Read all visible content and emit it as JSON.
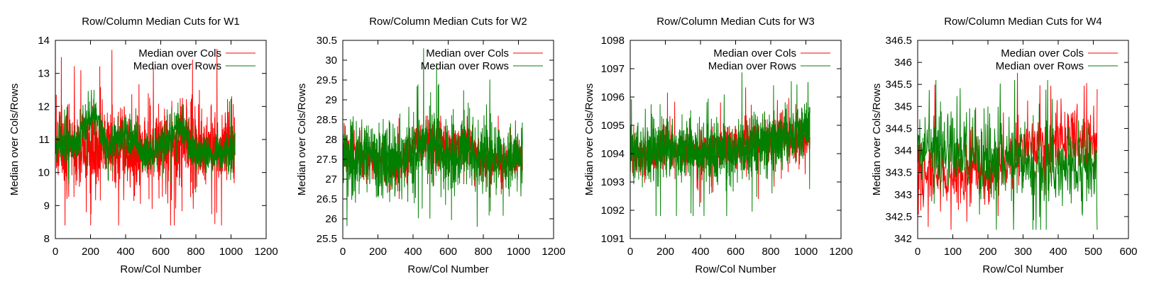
{
  "chart_data": [
    {
      "type": "line",
      "title": "Row/Column Median Cuts for W1",
      "xlabel": "Row/Col Number",
      "ylabel": "Median over Cols/Rows",
      "xlim": [
        0,
        1200
      ],
      "ylim": [
        8,
        14
      ],
      "xticks": [
        0,
        200,
        400,
        600,
        800,
        1000,
        1200
      ],
      "yticks": [
        8,
        9,
        10,
        11,
        12,
        13,
        14
      ],
      "ytick_labels": [
        "8",
        "9",
        "10",
        "11",
        "12",
        "13",
        "14"
      ],
      "n_points": 1024,
      "legend_position": "top-right",
      "series": [
        {
          "name": "Median over Cols",
          "color": "#ff0000",
          "x": [
            0,
            100,
            200,
            300,
            400,
            500,
            600,
            700,
            800,
            900,
            1000,
            1024
          ],
          "y": [
            10.9,
            10.8,
            10.9,
            10.8,
            10.7,
            10.6,
            10.8,
            10.9,
            10.8,
            10.7,
            10.8,
            10.8
          ],
          "spread": 0.6,
          "range": [
            8.4,
            13.9
          ]
        },
        {
          "name": "Median over Rows",
          "color": "#008000",
          "x": [
            0,
            100,
            200,
            300,
            400,
            500,
            600,
            700,
            800,
            900,
            1000,
            1024
          ],
          "y": [
            10.9,
            10.8,
            11.8,
            10.8,
            11.2,
            10.6,
            10.7,
            11.4,
            10.6,
            10.5,
            10.6,
            10.8
          ],
          "spread": 0.3,
          "range": [
            9.4,
            12.5
          ]
        }
      ]
    },
    {
      "type": "line",
      "title": "Row/Column Median Cuts for W2",
      "xlabel": "Row/Col Number",
      "ylabel": "Median over Cols/Rows",
      "xlim": [
        0,
        1200
      ],
      "ylim": [
        25.5,
        30.5
      ],
      "xticks": [
        0,
        200,
        400,
        600,
        800,
        1000,
        1200
      ],
      "yticks": [
        25.5,
        26,
        26.5,
        27,
        27.5,
        28,
        28.5,
        29,
        29.5,
        30,
        30.5
      ],
      "ytick_labels": [
        "25.5",
        "26",
        "26.5",
        "27",
        "27.5",
        "28",
        "28.5",
        "29",
        "29.5",
        "30",
        "30.5"
      ],
      "n_points": 1024,
      "legend_position": "top-right",
      "series": [
        {
          "name": "Median over Cols",
          "color": "#ff0000",
          "x": [
            0,
            100,
            200,
            300,
            400,
            500,
            600,
            700,
            800,
            900,
            1000,
            1024
          ],
          "y": [
            27.8,
            27.6,
            27.4,
            27.2,
            27.8,
            28.0,
            27.7,
            27.9,
            27.5,
            27.4,
            27.5,
            27.6
          ],
          "spread": 0.25,
          "range": [
            26.5,
            28.6
          ]
        },
        {
          "name": "Median over Rows",
          "color": "#008000",
          "x": [
            0,
            100,
            200,
            300,
            400,
            500,
            600,
            700,
            800,
            900,
            1000,
            1024
          ],
          "y": [
            27.6,
            27.6,
            27.6,
            27.5,
            27.7,
            27.7,
            27.6,
            27.6,
            27.6,
            27.5,
            27.5,
            27.5
          ],
          "spread": 0.45,
          "range": [
            25.8,
            30.3
          ]
        }
      ]
    },
    {
      "type": "line",
      "title": "Row/Column Median Cuts for W3",
      "xlabel": "Row/Col Number",
      "ylabel": "Median over Cols/Rows",
      "xlim": [
        0,
        1200
      ],
      "ylim": [
        1091,
        1098
      ],
      "xticks": [
        0,
        200,
        400,
        600,
        800,
        1000,
        1200
      ],
      "yticks": [
        1091,
        1092,
        1093,
        1094,
        1095,
        1096,
        1097,
        1098
      ],
      "ytick_labels": [
        "1091",
        "1092",
        "1093",
        "1094",
        "1095",
        "1096",
        "1097",
        "1098"
      ],
      "n_points": 1024,
      "legend_position": "top-right",
      "series": [
        {
          "name": "Median over Cols",
          "color": "#ff0000",
          "x": [
            0,
            100,
            200,
            300,
            400,
            500,
            600,
            700,
            800,
            900,
            1000,
            1024
          ],
          "y": [
            1094.0,
            1094.0,
            1094.1,
            1094.1,
            1094.1,
            1094.2,
            1094.3,
            1094.4,
            1094.5,
            1094.5,
            1094.5,
            1094.4
          ],
          "spread": 0.35,
          "range": [
            1092.2,
            1096.8
          ]
        },
        {
          "name": "Median over Rows",
          "color": "#008000",
          "x": [
            0,
            100,
            200,
            300,
            400,
            500,
            600,
            700,
            800,
            900,
            1000,
            1024
          ],
          "y": [
            1094.0,
            1094.1,
            1094.2,
            1094.1,
            1094.0,
            1094.0,
            1094.1,
            1094.3,
            1094.4,
            1094.5,
            1095.0,
            1094.9
          ],
          "spread": 0.55,
          "range": [
            1091.8,
            1097.4
          ]
        }
      ]
    },
    {
      "type": "line",
      "title": "Row/Column Median Cuts for W4",
      "xlabel": "Row/Col Number",
      "ylabel": "Median over Cols/Rows",
      "xlim": [
        0,
        600
      ],
      "ylim": [
        342,
        346.5
      ],
      "xticks": [
        0,
        100,
        200,
        300,
        400,
        500,
        600
      ],
      "yticks": [
        342,
        342.5,
        343,
        343.5,
        344,
        344.5,
        345,
        345.5,
        346,
        346.5
      ],
      "ytick_labels": [
        "342",
        "342.5",
        "343",
        "343.5",
        "344",
        "344.5",
        "345",
        "345.5",
        "346",
        "346.5"
      ],
      "n_points": 512,
      "legend_position": "top-right",
      "series": [
        {
          "name": "Median over Cols",
          "color": "#ff0000",
          "x": [
            0,
            50,
            100,
            150,
            200,
            250,
            300,
            350,
            400,
            450,
            500,
            512
          ],
          "y": [
            343.4,
            343.5,
            343.4,
            343.5,
            343.4,
            343.7,
            344.1,
            344.2,
            344.3,
            344.3,
            344.2,
            344.1
          ],
          "spread": 0.35,
          "range": [
            342.2,
            346.0
          ]
        },
        {
          "name": "Median over Rows",
          "color": "#008000",
          "x": [
            0,
            50,
            100,
            150,
            200,
            250,
            300,
            350,
            400,
            450,
            500,
            512
          ],
          "y": [
            344.0,
            344.1,
            344.0,
            343.9,
            343.8,
            343.8,
            343.7,
            343.6,
            343.6,
            343.7,
            343.6,
            343.5
          ],
          "spread": 0.45,
          "range": [
            342.2,
            345.6
          ]
        }
      ]
    }
  ]
}
